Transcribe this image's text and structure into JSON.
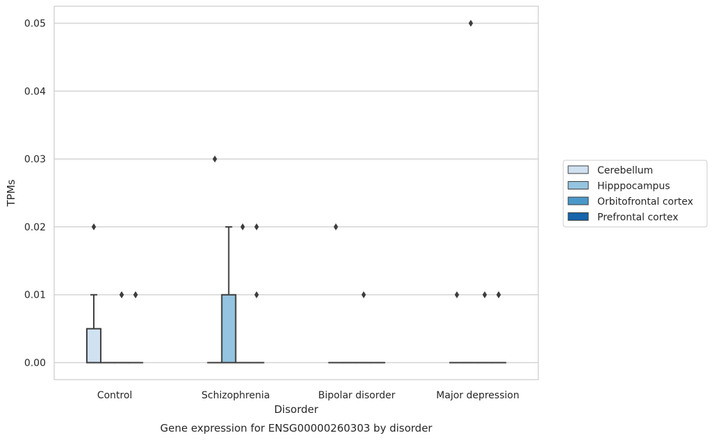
{
  "chart_data": {
    "type": "box",
    "title": "Gene expression for ENSG00000260303 by disorder",
    "xlabel": "Disorder",
    "ylabel": "TPMs",
    "categories": [
      "Control",
      "Schizophrenia",
      "Bipolar disorder",
      "Major depression"
    ],
    "yticks": [
      "0.00",
      "0.01",
      "0.02",
      "0.03",
      "0.04",
      "0.05"
    ],
    "ylim": [
      -0.0025,
      0.0525
    ],
    "grid": "horizontal",
    "legend_position": "right",
    "series": [
      {
        "name": "Cerebellum",
        "color": "#d0e1f2",
        "boxes": [
          {
            "q1": 0,
            "median": 0,
            "q3": 0.005,
            "whisker_low": 0,
            "whisker_high": 0.01,
            "outliers": [
              0.02
            ]
          },
          {
            "q1": 0,
            "median": 0,
            "q3": 0,
            "whisker_low": 0,
            "whisker_high": 0,
            "outliers": [
              0.03
            ]
          },
          {
            "q1": 0,
            "median": 0,
            "q3": 0,
            "whisker_low": 0,
            "whisker_high": 0,
            "outliers": [
              0.02
            ]
          },
          {
            "q1": 0,
            "median": 0,
            "q3": 0,
            "whisker_low": 0,
            "whisker_high": 0,
            "outliers": [
              0.01
            ]
          }
        ]
      },
      {
        "name": "Hipppocampus",
        "color": "#94c4df",
        "boxes": [
          {
            "q1": 0,
            "median": 0,
            "q3": 0,
            "whisker_low": 0,
            "whisker_high": 0,
            "outliers": []
          },
          {
            "q1": 0,
            "median": 0,
            "q3": 0.01,
            "whisker_low": 0,
            "whisker_high": 0.02,
            "outliers": []
          },
          {
            "q1": 0,
            "median": 0,
            "q3": 0,
            "whisker_low": 0,
            "whisker_high": 0,
            "outliers": []
          },
          {
            "q1": 0,
            "median": 0,
            "q3": 0,
            "whisker_low": 0,
            "whisker_high": 0,
            "outliers": [
              0.05
            ]
          }
        ]
      },
      {
        "name": "Orbitofrontal cortex",
        "color": "#4a98c9",
        "boxes": [
          {
            "q1": 0,
            "median": 0,
            "q3": 0,
            "whisker_low": 0,
            "whisker_high": 0,
            "outliers": [
              0.01,
              0.01
            ]
          },
          {
            "q1": 0,
            "median": 0,
            "q3": 0,
            "whisker_low": 0,
            "whisker_high": 0,
            "outliers": [
              0.02
            ]
          },
          {
            "q1": 0,
            "median": 0,
            "q3": 0,
            "whisker_low": 0,
            "whisker_high": 0,
            "outliers": [
              0.01
            ]
          },
          {
            "q1": 0,
            "median": 0,
            "q3": 0,
            "whisker_low": 0,
            "whisker_high": 0,
            "outliers": [
              0.01
            ]
          }
        ]
      },
      {
        "name": "Prefrontal cortex",
        "color": "#1764ab",
        "boxes": [
          {
            "q1": 0,
            "median": 0,
            "q3": 0,
            "whisker_low": 0,
            "whisker_high": 0,
            "outliers": [
              0.01,
              0.01
            ]
          },
          {
            "q1": 0,
            "median": 0,
            "q3": 0,
            "whisker_low": 0,
            "whisker_high": 0,
            "outliers": [
              0.02,
              0.01
            ]
          },
          {
            "q1": 0,
            "median": 0,
            "q3": 0,
            "whisker_low": 0,
            "whisker_high": 0,
            "outliers": []
          },
          {
            "q1": 0,
            "median": 0,
            "q3": 0,
            "whisker_low": 0,
            "whisker_high": 0,
            "outliers": [
              0.01,
              0.01
            ]
          }
        ]
      }
    ]
  }
}
